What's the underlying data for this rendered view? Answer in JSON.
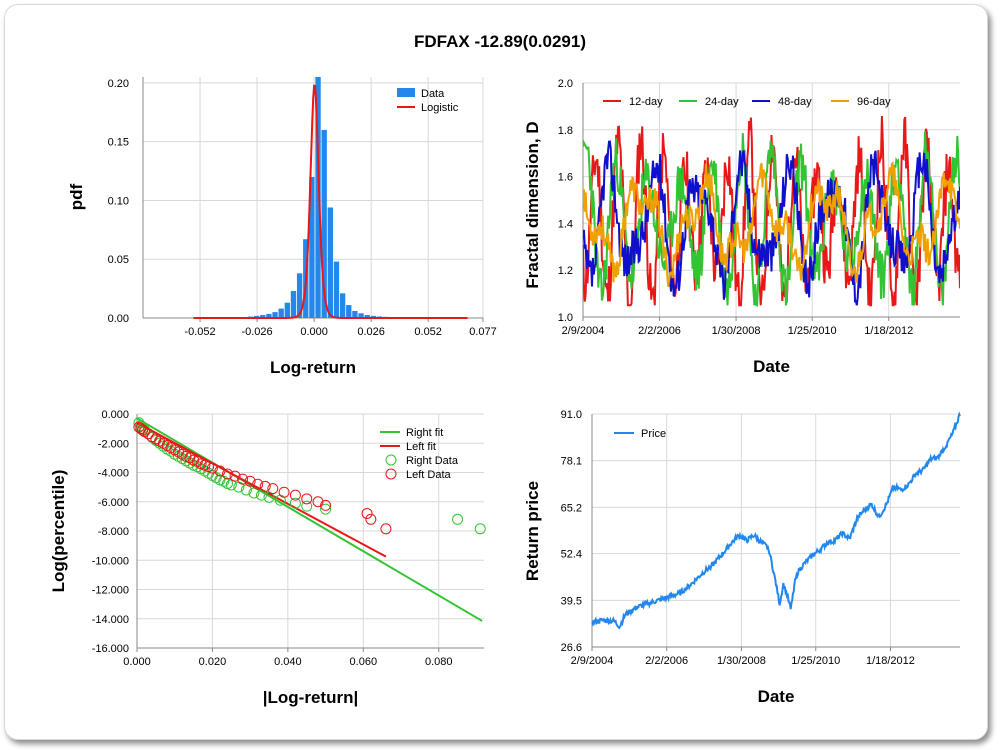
{
  "title": "FDFAX -12.89(0.0291)",
  "colors": {
    "blue": "#2288ee",
    "red": "#e81818",
    "green": "#33c433",
    "navy": "#1010cc",
    "orange": "#f0a000",
    "grid": "#d8d8d8"
  },
  "chart_data": [
    {
      "type": "bar",
      "id": "pdf",
      "xlabel": "Log-return",
      "ylabel": "pdf",
      "xlim": [
        -0.078,
        0.077
      ],
      "ylim": [
        0,
        0.205
      ],
      "xticks": [
        -0.052,
        -0.026,
        0.0,
        0.026,
        0.052,
        0.077
      ],
      "xtick_labels": [
        "-0.052",
        "-0.026",
        "0.000",
        "0.026",
        "0.052",
        "0.077"
      ],
      "yticks": [
        0,
        0.05,
        0.1,
        0.15,
        0.2
      ],
      "ytick_labels": [
        "0.00",
        "0.05",
        "0.10",
        "0.15",
        "0.20"
      ],
      "bin_width": 0.0028,
      "bins": [
        -0.0416,
        -0.0388,
        -0.036,
        -0.0332,
        -0.0304,
        -0.0276,
        -0.0248,
        -0.022,
        -0.0192,
        -0.0164,
        -0.0136,
        -0.0108,
        -0.008,
        -0.0052,
        -0.0024,
        0.0004,
        0.0032,
        0.006,
        0.0088,
        0.0116,
        0.0144,
        0.0172,
        0.02,
        0.0228,
        0.0256,
        0.0284,
        0.0312,
        0.034,
        0.0368,
        0.0396,
        0.0424,
        0.0452,
        0.048
      ],
      "values": [
        0.0003,
        0.0005,
        0.0006,
        0.0008,
        0.0012,
        0.0018,
        0.0025,
        0.0035,
        0.005,
        0.008,
        0.013,
        0.023,
        0.038,
        0.067,
        0.12,
        0.205,
        0.16,
        0.094,
        0.048,
        0.021,
        0.011,
        0.006,
        0.004,
        0.0025,
        0.0018,
        0.0013,
        0.001,
        0.0008,
        0.0006,
        0.0005,
        0.0004,
        0.0003,
        0.0002
      ],
      "series": [
        {
          "name": "Data"
        },
        {
          "name": "Logistic"
        }
      ],
      "logistic": {
        "mu": 0.0002,
        "s": 0.00125
      },
      "legend": "top-right"
    },
    {
      "type": "line",
      "id": "fractal",
      "xlabel": "Date",
      "ylabel": "Fractal dimension, D",
      "xlim": [
        0,
        100
      ],
      "ylim": [
        1.0,
        2.0
      ],
      "xticks": [
        0,
        20.3,
        40.6,
        60.8,
        81.1
      ],
      "xtick_labels": [
        "2/9/2004",
        "2/2/2006",
        "1/30/2008",
        "1/25/2010",
        "1/18/2012"
      ],
      "yticks": [
        1.0,
        1.2,
        1.4,
        1.6,
        1.8,
        2.0
      ],
      "ytick_labels": [
        "1.0",
        "1.2",
        "1.4",
        "1.6",
        "1.8",
        "2.0"
      ],
      "series": [
        {
          "name": "12-day",
          "color": "red",
          "seed": 11,
          "amp": 0.28,
          "period": 3.2
        },
        {
          "name": "24-day",
          "color": "green",
          "seed": 23,
          "amp": 0.24,
          "period": 4.5
        },
        {
          "name": "48-day",
          "color": "navy",
          "seed": 37,
          "amp": 0.2,
          "period": 6.5
        },
        {
          "name": "96-day",
          "color": "orange",
          "seed": 53,
          "amp": 0.14,
          "period": 9.0
        }
      ],
      "legend": "top-left"
    },
    {
      "type": "scatter",
      "id": "tail",
      "xlabel": "|Log-return|",
      "ylabel": "Log(percentile)",
      "xlim": [
        0.0,
        0.092
      ],
      "ylim": [
        -16.0,
        0.0
      ],
      "xticks": [
        0.0,
        0.02,
        0.04,
        0.06,
        0.08
      ],
      "xtick_labels": [
        "0.000",
        "0.020",
        "0.040",
        "0.060",
        "0.080"
      ],
      "yticks": [
        0,
        -2,
        -4,
        -6,
        -8,
        -10,
        -12,
        -14,
        -16
      ],
      "ytick_labels": [
        "0.000",
        "-2.000",
        "-4.000",
        "-6.000",
        "-8.000",
        "-10.000",
        "-12.000",
        "-14.000",
        "-16.000"
      ],
      "right_fit": {
        "name": "Right fit",
        "x": [
          0.0,
          0.0915
        ],
        "y": [
          -0.3,
          -14.15
        ]
      },
      "left_fit": {
        "name": "Left fit",
        "x": [
          0.0,
          0.066
        ],
        "y": [
          -0.6,
          -9.75
        ]
      },
      "right_data": {
        "name": "Right Data",
        "x": [
          0.0005,
          0.001,
          0.0015,
          0.002,
          0.003,
          0.004,
          0.005,
          0.006,
          0.007,
          0.008,
          0.009,
          0.01,
          0.011,
          0.012,
          0.013,
          0.014,
          0.015,
          0.016,
          0.017,
          0.018,
          0.019,
          0.02,
          0.021,
          0.022,
          0.023,
          0.024,
          0.025,
          0.027,
          0.029,
          0.031,
          0.033,
          0.035,
          0.038,
          0.042,
          0.045,
          0.05,
          0.085,
          0.091
        ],
        "y": [
          -0.6,
          -0.8,
          -1.0,
          -1.1,
          -1.35,
          -1.6,
          -1.8,
          -2.0,
          -2.2,
          -2.4,
          -2.55,
          -2.75,
          -2.9,
          -3.05,
          -3.2,
          -3.35,
          -3.5,
          -3.6,
          -3.75,
          -3.9,
          -4.05,
          -4.2,
          -4.35,
          -4.5,
          -4.6,
          -4.75,
          -4.85,
          -5.0,
          -5.2,
          -5.4,
          -5.55,
          -5.7,
          -5.9,
          -6.1,
          -6.3,
          -6.5,
          -7.2,
          -7.85
        ]
      },
      "left_data": {
        "name": "Left Data",
        "x": [
          0.0005,
          0.001,
          0.0015,
          0.002,
          0.003,
          0.004,
          0.005,
          0.006,
          0.007,
          0.008,
          0.009,
          0.01,
          0.011,
          0.012,
          0.013,
          0.014,
          0.015,
          0.016,
          0.017,
          0.018,
          0.019,
          0.02,
          0.022,
          0.024,
          0.026,
          0.028,
          0.03,
          0.032,
          0.034,
          0.036,
          0.039,
          0.042,
          0.045,
          0.048,
          0.05,
          0.061,
          0.062,
          0.066
        ],
        "y": [
          -0.9,
          -1.0,
          -1.1,
          -1.2,
          -1.35,
          -1.55,
          -1.7,
          -1.85,
          -2.0,
          -2.15,
          -2.3,
          -2.45,
          -2.6,
          -2.75,
          -2.9,
          -3.0,
          -3.15,
          -3.25,
          -3.4,
          -3.5,
          -3.6,
          -3.7,
          -3.9,
          -4.1,
          -4.25,
          -4.45,
          -4.6,
          -4.8,
          -4.95,
          -5.1,
          -5.35,
          -5.55,
          -5.8,
          -6.0,
          -6.25,
          -6.8,
          -7.2,
          -7.85
        ]
      },
      "legend": "top-right"
    },
    {
      "type": "line",
      "id": "price",
      "xlabel": "Date",
      "ylabel": "Return price",
      "xlim": [
        0,
        100
      ],
      "ylim": [
        26.6,
        91.0
      ],
      "xticks": [
        0,
        20.3,
        40.6,
        60.8,
        81.1
      ],
      "xtick_labels": [
        "2/9/2004",
        "2/2/2006",
        "1/30/2008",
        "1/25/2010",
        "1/18/2012"
      ],
      "yticks": [
        26.6,
        39.5,
        52.4,
        65.2,
        78.1,
        91.0
      ],
      "ytick_labels": [
        "26.6",
        "39.5",
        "52.4",
        "65.2",
        "78.1",
        "91.0"
      ],
      "series": [
        {
          "name": "Price",
          "color": "blue",
          "x": [
            0,
            3,
            6,
            7.5,
            9,
            12,
            15,
            18,
            21,
            24,
            27,
            30,
            33,
            36,
            38,
            40,
            42,
            44,
            46,
            48,
            50,
            51,
            52,
            53,
            54,
            55,
            56,
            58,
            60,
            62,
            64,
            66,
            68,
            70,
            72,
            74,
            76,
            78,
            80,
            82,
            84,
            86,
            88,
            90,
            92,
            94,
            96,
            98,
            100
          ],
          "y": [
            33.5,
            34.0,
            33.8,
            32.2,
            35.5,
            37.5,
            38.5,
            39.5,
            40.5,
            41.5,
            44.0,
            47.0,
            49.5,
            53.0,
            55.5,
            57.5,
            56.0,
            57.5,
            55.5,
            54.0,
            44.0,
            38.5,
            44.0,
            41.0,
            37.0,
            44.0,
            47.5,
            50.0,
            52.0,
            53.5,
            55.5,
            56.0,
            58.0,
            56.5,
            62.0,
            64.5,
            66.0,
            62.5,
            66.0,
            71.0,
            70.0,
            71.5,
            74.5,
            75.5,
            78.5,
            79.0,
            82.0,
            85.5,
            91.0
          ]
        }
      ],
      "legend": "top-left"
    }
  ]
}
